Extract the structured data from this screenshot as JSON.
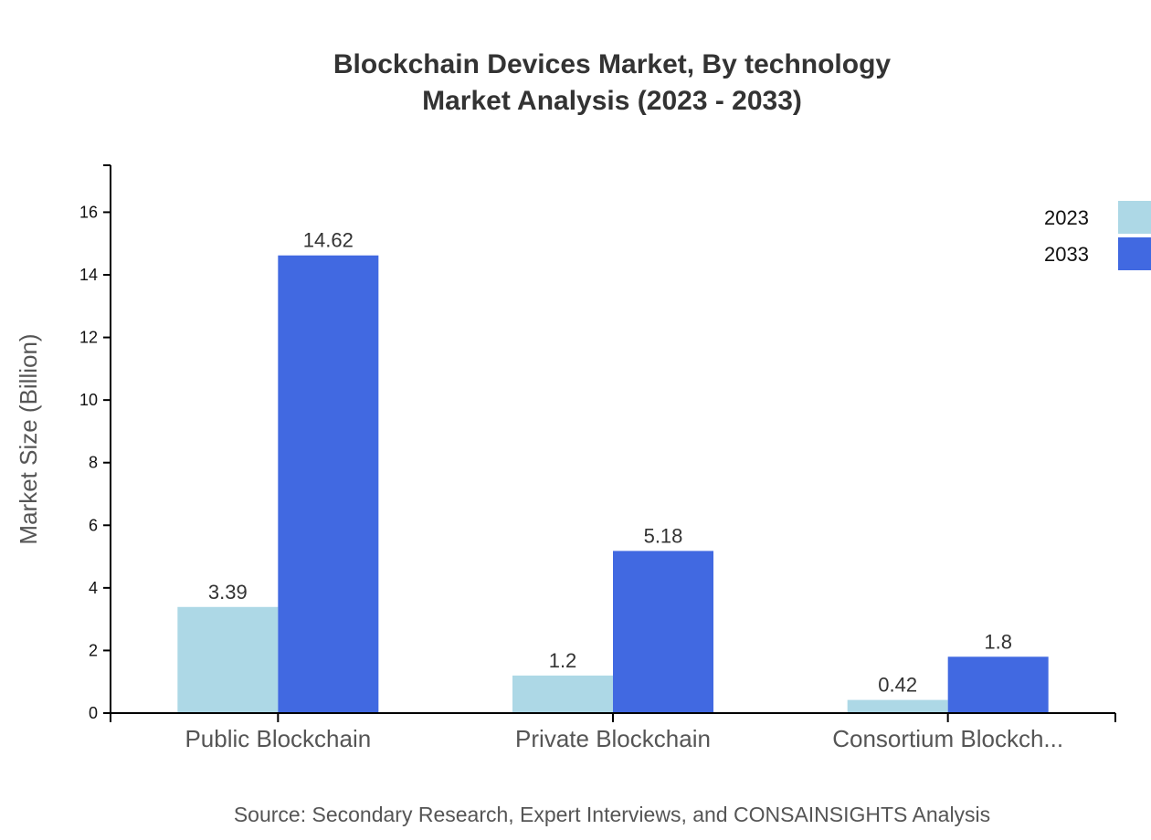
{
  "chart_data": {
    "type": "bar",
    "title": "Blockchain Devices Market, By technology",
    "subtitle": "Market Analysis (2023 - 2033)",
    "xlabel": "",
    "ylabel": "Market Size (Billion)",
    "ylim": [
      0,
      17.5
    ],
    "yticks": [
      0,
      2,
      4,
      6,
      8,
      10,
      12,
      14,
      16
    ],
    "categories": [
      "Public Blockchain",
      "Private Blockchain",
      "Consortium Blockch..."
    ],
    "series": [
      {
        "name": "2023",
        "color": "#ADD8E6",
        "values": [
          3.39,
          1.2,
          0.42
        ]
      },
      {
        "name": "2033",
        "color": "#4169E1",
        "values": [
          14.62,
          5.18,
          1.8
        ]
      }
    ],
    "grid": false,
    "legend_position": "top-right",
    "source": "Source: Secondary Research, Expert Interviews, and CONSAINSIGHTS Analysis"
  }
}
